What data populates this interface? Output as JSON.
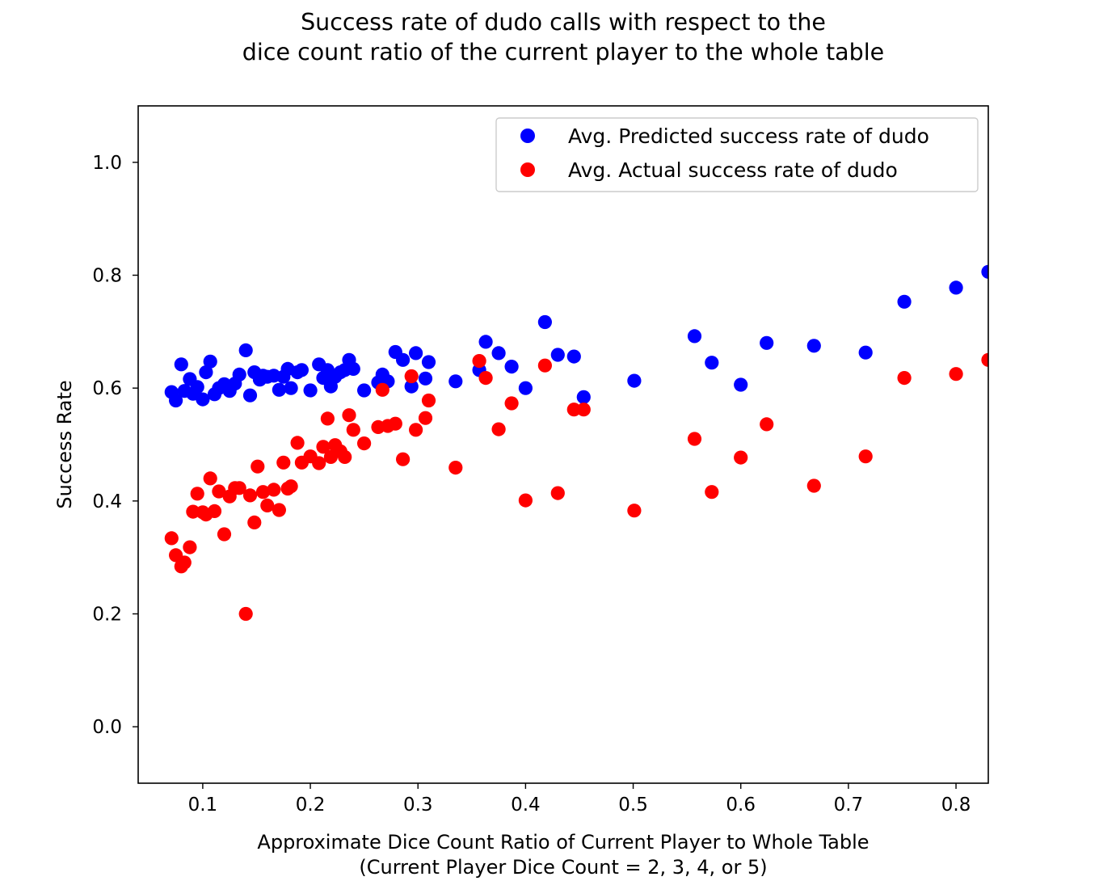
{
  "chart_data": {
    "type": "scatter",
    "title": [
      "Success rate of dudo calls with respect to the",
      "dice count ratio of the current player to the whole table"
    ],
    "xlabel": [
      "Approximate Dice Count Ratio of Current Player to Whole Table",
      "(Current Player Dice Count = 2, 3, 4, or 5)"
    ],
    "ylabel": "Success Rate",
    "xlim": [
      0.04,
      0.83
    ],
    "ylim": [
      -0.1,
      1.1
    ],
    "xticks": [
      0.1,
      0.2,
      0.3,
      0.4,
      0.5,
      0.6,
      0.7,
      0.8
    ],
    "xtick_labels": [
      "0.1",
      "0.2",
      "0.3",
      "0.4",
      "0.5",
      "0.6",
      "0.7",
      "0.8"
    ],
    "yticks": [
      0.0,
      0.2,
      0.4,
      0.6,
      0.8,
      1.0
    ],
    "ytick_labels": [
      "0.0",
      "0.2",
      "0.4",
      "0.6",
      "0.8",
      "1.0"
    ],
    "grid": false,
    "legend_position": "top-right",
    "series": [
      {
        "name": "Avg. Predicted success rate of dudo",
        "color": "#0000ff",
        "x": [
          0.071,
          0.075,
          0.08,
          0.083,
          0.088,
          0.091,
          0.095,
          0.1,
          0.103,
          0.107,
          0.111,
          0.115,
          0.12,
          0.125,
          0.13,
          0.134,
          0.14,
          0.144,
          0.148,
          0.153,
          0.156,
          0.16,
          0.166,
          0.171,
          0.175,
          0.179,
          0.182,
          0.188,
          0.192,
          0.2,
          0.208,
          0.212,
          0.216,
          0.219,
          0.223,
          0.228,
          0.232,
          0.236,
          0.24,
          0.25,
          0.263,
          0.267,
          0.272,
          0.279,
          0.286,
          0.294,
          0.298,
          0.307,
          0.31,
          0.335,
          0.357,
          0.363,
          0.375,
          0.387,
          0.4,
          0.418,
          0.43,
          0.445,
          0.454,
          0.501,
          0.557,
          0.573,
          0.6,
          0.624,
          0.668,
          0.716,
          0.752,
          0.8,
          0.83
        ],
        "y": [
          0.593,
          0.578,
          0.642,
          0.595,
          0.616,
          0.59,
          0.602,
          0.58,
          0.628,
          0.647,
          0.589,
          0.6,
          0.607,
          0.595,
          0.608,
          0.624,
          0.667,
          0.587,
          0.628,
          0.615,
          0.622,
          0.62,
          0.622,
          0.597,
          0.62,
          0.634,
          0.6,
          0.628,
          0.632,
          0.596,
          0.642,
          0.618,
          0.632,
          0.603,
          0.62,
          0.628,
          0.632,
          0.65,
          0.634,
          0.596,
          0.61,
          0.624,
          0.612,
          0.664,
          0.65,
          0.603,
          0.662,
          0.617,
          0.646,
          0.612,
          0.632,
          0.682,
          0.662,
          0.638,
          0.6,
          0.717,
          0.659,
          0.656,
          0.584,
          0.613,
          0.692,
          0.645,
          0.606,
          0.68,
          0.675,
          0.663,
          0.753,
          0.778,
          0.806
        ]
      },
      {
        "name": "Avg. Actual success rate of dudo",
        "color": "#ff0000",
        "x": [
          0.071,
          0.075,
          0.08,
          0.083,
          0.088,
          0.091,
          0.095,
          0.1,
          0.103,
          0.107,
          0.111,
          0.115,
          0.12,
          0.125,
          0.13,
          0.134,
          0.14,
          0.144,
          0.148,
          0.151,
          0.156,
          0.16,
          0.166,
          0.171,
          0.175,
          0.179,
          0.182,
          0.188,
          0.192,
          0.2,
          0.208,
          0.212,
          0.216,
          0.219,
          0.223,
          0.228,
          0.232,
          0.236,
          0.24,
          0.25,
          0.263,
          0.267,
          0.272,
          0.279,
          0.286,
          0.294,
          0.298,
          0.307,
          0.31,
          0.335,
          0.357,
          0.363,
          0.375,
          0.387,
          0.4,
          0.418,
          0.43,
          0.445,
          0.454,
          0.501,
          0.557,
          0.573,
          0.6,
          0.624,
          0.668,
          0.716,
          0.752,
          0.8,
          0.83
        ],
        "y": [
          0.334,
          0.304,
          0.284,
          0.291,
          0.318,
          0.381,
          0.413,
          0.38,
          0.376,
          0.44,
          0.382,
          0.417,
          0.341,
          0.408,
          0.423,
          0.423,
          0.2,
          0.41,
          0.362,
          0.461,
          0.416,
          0.392,
          0.42,
          0.384,
          0.468,
          0.422,
          0.426,
          0.503,
          0.468,
          0.479,
          0.467,
          0.496,
          0.546,
          0.478,
          0.499,
          0.488,
          0.478,
          0.552,
          0.526,
          0.502,
          0.531,
          0.597,
          0.533,
          0.537,
          0.474,
          0.621,
          0.526,
          0.547,
          0.578,
          0.459,
          0.648,
          0.618,
          0.527,
          0.573,
          0.401,
          0.64,
          0.414,
          0.562,
          0.562,
          0.383,
          0.51,
          0.416,
          0.477,
          0.536,
          0.427,
          0.479,
          0.618,
          0.625,
          0.65
        ]
      }
    ]
  }
}
